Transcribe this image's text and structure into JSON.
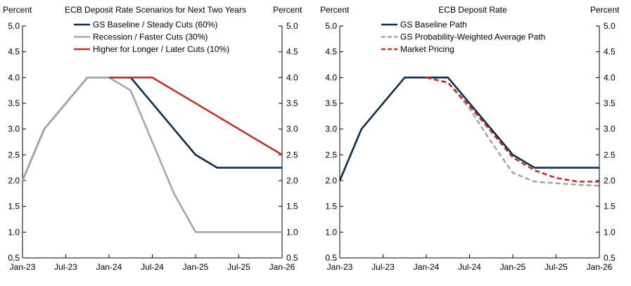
{
  "chart_data": [
    {
      "type": "line",
      "title": "ECB Deposit Rate Scenarios for Next Two Years",
      "left_unit": "Percent",
      "right_unit": "Percent",
      "ylim": [
        0.5,
        5.0
      ],
      "yticks": [
        "0.5",
        "1.0",
        "1.5",
        "2.0",
        "2.5",
        "3.0",
        "3.5",
        "4.0",
        "4.5",
        "5.0"
      ],
      "xlim": [
        0,
        36
      ],
      "xticks": [
        {
          "x": 0,
          "label": "Jan-23"
        },
        {
          "x": 6,
          "label": "Jul-23"
        },
        {
          "x": 12,
          "label": "Jan-24"
        },
        {
          "x": 18,
          "label": "Jul-24"
        },
        {
          "x": 24,
          "label": "Jan-25"
        },
        {
          "x": 30,
          "label": "Jul-25"
        },
        {
          "x": 36,
          "label": "Jan-26"
        }
      ],
      "series": [
        {
          "name": "GS Baseline / Steady Cuts (60%)",
          "color": "#0d2b4e",
          "dash": false,
          "x": [
            0,
            3,
            9,
            15,
            24,
            27,
            36
          ],
          "values": [
            2.0,
            3.0,
            4.0,
            4.0,
            2.5,
            2.25,
            2.25
          ]
        },
        {
          "name": "Recession / Faster Cuts (30%)",
          "color": "#a6a6a6",
          "dash": false,
          "x": [
            0,
            3,
            9,
            12,
            15,
            21,
            24,
            36
          ],
          "values": [
            2.0,
            3.0,
            4.0,
            4.0,
            3.75,
            1.75,
            1.0,
            1.0
          ]
        },
        {
          "name": "Higher for Longer / Later Cuts (10%)",
          "color": "#c0302e",
          "dash": false,
          "x": [
            12,
            18,
            36
          ],
          "values": [
            4.0,
            4.0,
            2.5
          ]
        }
      ]
    },
    {
      "type": "line",
      "title": "ECB Deposit Rate",
      "left_unit": "Percent",
      "right_unit": "Percent",
      "ylim": [
        0.5,
        5.0
      ],
      "yticks": [
        "0.5",
        "1.0",
        "1.5",
        "2.0",
        "2.5",
        "3.0",
        "3.5",
        "4.0",
        "4.5",
        "5.0"
      ],
      "xlim": [
        0,
        36
      ],
      "xticks": [
        {
          "x": 0,
          "label": "Jan-23"
        },
        {
          "x": 6,
          "label": "Jul-23"
        },
        {
          "x": 12,
          "label": "Jan-24"
        },
        {
          "x": 18,
          "label": "Jul-24"
        },
        {
          "x": 24,
          "label": "Jan-25"
        },
        {
          "x": 30,
          "label": "Jul-25"
        },
        {
          "x": 36,
          "label": "Jan-26"
        }
      ],
      "series": [
        {
          "name": "GS Baseline Path",
          "color": "#0d2b4e",
          "dash": false,
          "x": [
            0,
            3,
            9,
            15,
            24,
            27,
            36
          ],
          "values": [
            2.0,
            3.0,
            4.0,
            4.0,
            2.5,
            2.25,
            2.25
          ]
        },
        {
          "name": "GS Probability-Weighted Average Path",
          "color": "#a6a6a6",
          "dash": true,
          "x": [
            12,
            15,
            18,
            21,
            24,
            27,
            30,
            33,
            36
          ],
          "values": [
            4.0,
            3.9,
            3.4,
            2.75,
            2.15,
            1.98,
            1.95,
            1.92,
            1.9
          ]
        },
        {
          "name": "Market Pricing",
          "color": "#c0302e",
          "dash": true,
          "x": [
            12,
            15,
            18,
            21,
            24,
            27,
            30,
            33,
            36
          ],
          "values": [
            4.0,
            3.9,
            3.45,
            2.95,
            2.45,
            2.2,
            2.05,
            1.98,
            1.98
          ]
        }
      ]
    }
  ]
}
